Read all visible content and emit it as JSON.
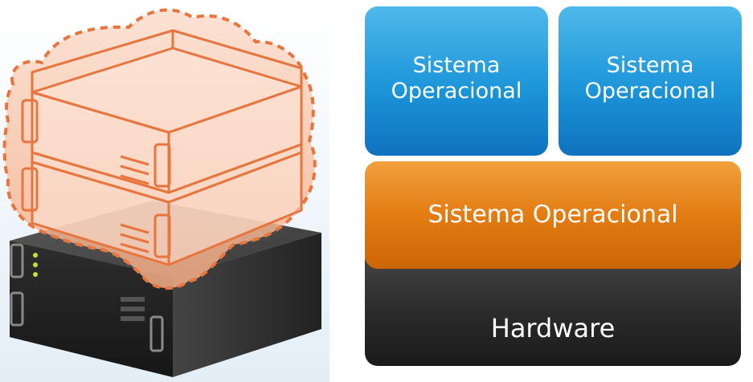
{
  "illustration": {
    "icon": "virtualized-server-icon",
    "colors": {
      "virtual_outline": "#e8753e",
      "virtual_fill": "#f9c9ad",
      "server_body": "#2f2f2f",
      "status_led": "#c6e23a"
    }
  },
  "layers": {
    "guest_os_1": "Sistema\nOperacional",
    "guest_os_2": "Sistema\nOperacional",
    "host_os": "Sistema Operacional",
    "hardware": "Hardware"
  },
  "colors": {
    "guest_layer": "#1c95d9",
    "host_layer": "#e37c12",
    "hardware_layer": "#2b2b2b"
  }
}
